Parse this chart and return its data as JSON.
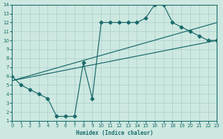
{
  "xlabel": "Humidex (Indice chaleur)",
  "bg_color": "#cde8e0",
  "grid_color": "#aacccc",
  "line_color": "#1a6b6b",
  "xlim": [
    0,
    23
  ],
  "ylim": [
    1,
    14
  ],
  "xticks": [
    0,
    1,
    2,
    3,
    4,
    5,
    6,
    7,
    8,
    9,
    10,
    11,
    12,
    13,
    14,
    15,
    16,
    17,
    18,
    19,
    20,
    21,
    22,
    23
  ],
  "yticks": [
    1,
    2,
    3,
    4,
    5,
    6,
    7,
    8,
    9,
    10,
    11,
    12,
    13,
    14
  ],
  "main_line_x": [
    0,
    1,
    2,
    3,
    4,
    5,
    6,
    7,
    8,
    9,
    10,
    11,
    12,
    13,
    14,
    15,
    16,
    17,
    18,
    19,
    20,
    21,
    22,
    23
  ],
  "main_line_y": [
    6,
    5,
    4.5,
    4,
    3.5,
    1.5,
    1.5,
    1.5,
    7.5,
    3.5,
    12,
    12,
    12,
    12,
    12,
    12.5,
    14,
    14,
    12,
    11.5,
    11,
    10.5,
    10,
    10
  ],
  "line1_x": [
    0,
    23
  ],
  "line1_y": [
    5.5,
    10
  ],
  "line2_x": [
    0,
    23
  ],
  "line2_y": [
    5.5,
    12
  ],
  "markersize": 2.5
}
